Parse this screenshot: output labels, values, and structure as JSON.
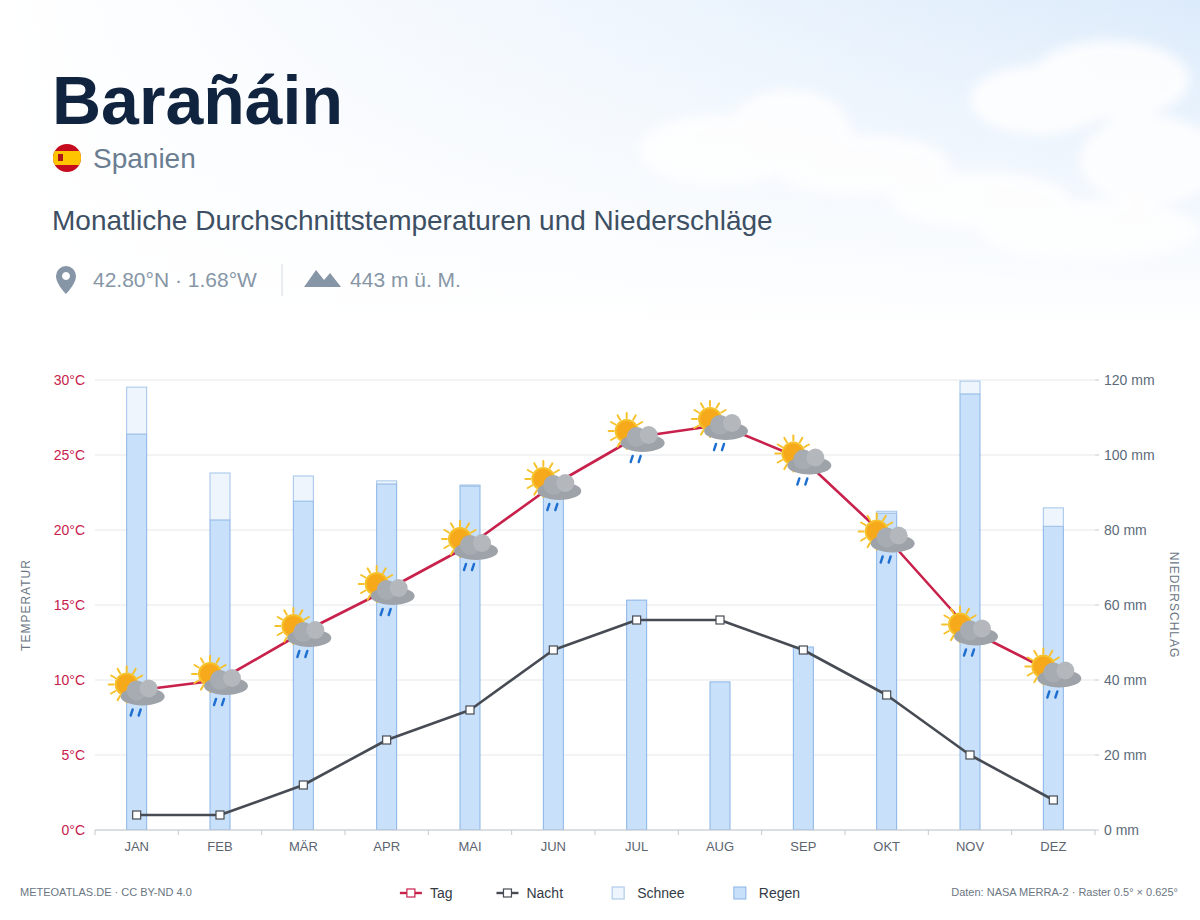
{
  "chart_data": {
    "type": "bar",
    "title": "Barañáin",
    "country": "Spanien",
    "subtitle": "Monatliche Durchschnittstemperaturen und Niederschläge",
    "coordinates": "42.80°N · 1.68°W",
    "elevation": "443 m ü. M.",
    "ylabel": "TEMPERATUR",
    "y2label": "NIEDERSCHLAG",
    "credit": "METEOATLAS.DE · CC BY-ND 4.0",
    "source": "Daten: NASA MERRA-2 · Raster 0.5° × 0.625°",
    "categories": [
      "JAN",
      "FEB",
      "MÄR",
      "APR",
      "MAI",
      "JUN",
      "JUL",
      "AUG",
      "SEP",
      "OKT",
      "NOV",
      "DEZ"
    ],
    "ylim": [
      0,
      30
    ],
    "yticks": [
      {
        "value": 0,
        "label": "0°C"
      },
      {
        "value": 5,
        "label": "5°C"
      },
      {
        "value": 10,
        "label": "10°C"
      },
      {
        "value": 15,
        "label": "15°C"
      },
      {
        "value": 20,
        "label": "20°C"
      },
      {
        "value": 25,
        "label": "25°C"
      },
      {
        "value": 30,
        "label": "30°C"
      }
    ],
    "y2lim": [
      0,
      120
    ],
    "y2ticks": [
      {
        "value": 0,
        "label": "0 mm"
      },
      {
        "value": 20,
        "label": "20 mm"
      },
      {
        "value": 40,
        "label": "40 mm"
      },
      {
        "value": 60,
        "label": "60 mm"
      },
      {
        "value": 80,
        "label": "80 mm"
      },
      {
        "value": 100,
        "label": "100 mm"
      },
      {
        "value": 120,
        "label": "120 mm"
      }
    ],
    "grid": true,
    "stacked": true,
    "legend": "bottom",
    "series": [
      {
        "name": "Tag",
        "type": "line",
        "color": "#c8214b",
        "marker": "square",
        "values": [
          9.3,
          10,
          13.2,
          16,
          19,
          23,
          26.2,
          27,
          24.7,
          19.5,
          13.3,
          10.5
        ]
      },
      {
        "name": "Nacht",
        "type": "line",
        "color": "#474b53",
        "marker": "square",
        "values": [
          1,
          1,
          3,
          6,
          8,
          12,
          14,
          14,
          12,
          9,
          5,
          2
        ]
      },
      {
        "name": "Schnee",
        "type": "bar",
        "axis": "y2",
        "color": "#eef5fd",
        "values": [
          12.5,
          12.5,
          6.7,
          0.8,
          0.3,
          0,
          0,
          0,
          0,
          0.5,
          3.4,
          4.9
        ]
      },
      {
        "name": "Regen",
        "type": "bar",
        "axis": "y2",
        "color": "#c9e0fa",
        "values": [
          105.6,
          82.7,
          87.7,
          92.3,
          91.7,
          89,
          61.3,
          39.5,
          48.8,
          84.5,
          116.3,
          81
        ]
      }
    ]
  }
}
